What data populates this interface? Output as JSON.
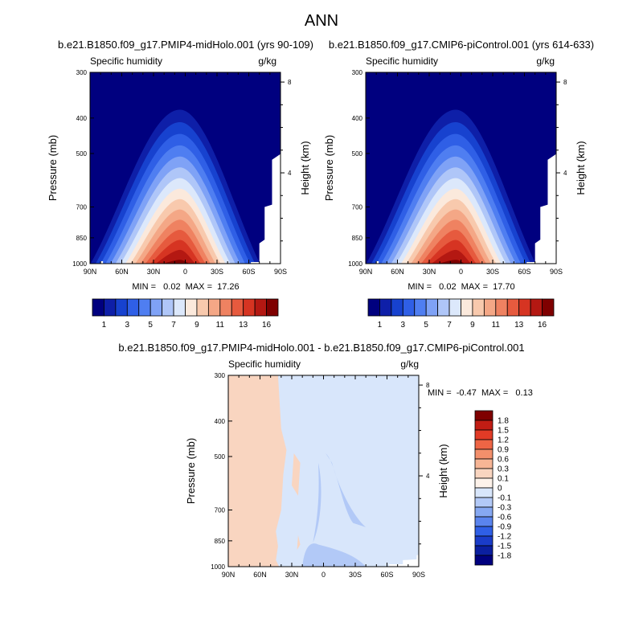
{
  "figure": {
    "title": "ANN",
    "panels": [
      {
        "heading": "b.e21.B1850.f09_g17.PMIP4-midHolo.001 (yrs 90-109)",
        "field_label": "Specific humidity",
        "units": "g/kg",
        "stats": "MIN =   0.02  MAX =  17.26"
      },
      {
        "heading": "b.e21.B1850.f09_g17.CMIP6-piControl.001 (yrs 614-633)",
        "field_label": "Specific humidity",
        "units": "g/kg",
        "stats": "MIN =   0.02  MAX =  17.70"
      },
      {
        "heading": "b.e21.B1850.f09_g17.PMIP4-midHolo.001 - b.e21.B1850.f09_g17.CMIP6-piControl.001",
        "field_label": "Specific humidity",
        "units": "g/kg",
        "stats": "MIN =  -0.47  MAX =   0.13"
      }
    ]
  },
  "chart_data": [
    {
      "type": "heatmap",
      "title": "b.e21.B1850.f09_g17.PMIP4-midHolo.001 (yrs 90-109)",
      "field": "Specific humidity",
      "units": "g/kg",
      "xlabel": "",
      "ylabel": "Pressure (mb)",
      "y2label": "Height (km)",
      "x_ticks": [
        "90N",
        "60N",
        "30N",
        "0",
        "30S",
        "60S",
        "90S"
      ],
      "y_ticks": [
        300,
        400,
        500,
        700,
        850,
        1000
      ],
      "y2_ticks": [
        8,
        4
      ],
      "ylim": [
        1000,
        300
      ],
      "y_scale": "log",
      "min": 0.02,
      "max": 17.26,
      "colorbar_labels": [
        "1",
        "3",
        "5",
        "7",
        "9",
        "11",
        "13",
        "16"
      ],
      "colorbar_colors": [
        "#00007f",
        "#0e1fa8",
        "#1742cf",
        "#2f5fe6",
        "#4f7ef1",
        "#7fa2f6",
        "#afc6f8",
        "#dce8fb",
        "#fbe9dc",
        "#f8c9ad",
        "#f4a786",
        "#ef8261",
        "#e65a3e",
        "#d63422",
        "#b41812",
        "#7f0000"
      ],
      "peak": {
        "lat": 5,
        "pressure": 1000
      }
    },
    {
      "type": "heatmap",
      "title": "b.e21.B1850.f09_g17.CMIP6-piControl.001 (yrs 614-633)",
      "field": "Specific humidity",
      "units": "g/kg",
      "xlabel": "",
      "ylabel": "Pressure (mb)",
      "y2label": "Height (km)",
      "x_ticks": [
        "90N",
        "60N",
        "30N",
        "0",
        "30S",
        "60S",
        "90S"
      ],
      "y_ticks": [
        300,
        400,
        500,
        700,
        850,
        1000
      ],
      "y2_ticks": [
        8,
        4
      ],
      "ylim": [
        1000,
        300
      ],
      "y_scale": "log",
      "min": 0.02,
      "max": 17.7,
      "colorbar_labels": [
        "1",
        "3",
        "5",
        "7",
        "9",
        "11",
        "13",
        "16"
      ],
      "colorbar_colors": [
        "#00007f",
        "#0e1fa8",
        "#1742cf",
        "#2f5fe6",
        "#4f7ef1",
        "#7fa2f6",
        "#afc6f8",
        "#dce8fb",
        "#fbe9dc",
        "#f8c9ad",
        "#f4a786",
        "#ef8261",
        "#e65a3e",
        "#d63422",
        "#b41812",
        "#7f0000"
      ],
      "peak": {
        "lat": 5,
        "pressure": 1000
      }
    },
    {
      "type": "heatmap",
      "title": "b.e21.B1850.f09_g17.PMIP4-midHolo.001 - b.e21.B1850.f09_g17.CMIP6-piControl.001",
      "field": "Specific humidity",
      "units": "g/kg",
      "xlabel": "",
      "ylabel": "Pressure (mb)",
      "y2label": "Height (km)",
      "x_ticks": [
        "90N",
        "60N",
        "30N",
        "0",
        "30S",
        "60S",
        "90S"
      ],
      "y_ticks": [
        300,
        400,
        500,
        700,
        850,
        1000
      ],
      "y2_ticks": [
        8,
        4
      ],
      "ylim": [
        1000,
        300
      ],
      "y_scale": "log",
      "min": -0.47,
      "max": 0.13,
      "colorbar_labels": [
        "1.8",
        "1.5",
        "1.2",
        "0.9",
        "0.6",
        "0.3",
        "0.1",
        "0",
        "-0.1",
        "-0.3",
        "-0.6",
        "-0.9",
        "-1.2",
        "-1.5",
        "-1.8"
      ],
      "colorbar_colors": [
        "#7f0000",
        "#c11d14",
        "#e13b26",
        "#ee6545",
        "#f38f6b",
        "#f7b595",
        "#f9d5c0",
        "#fdf2ea",
        "#d8e6fb",
        "#b2c9f7",
        "#86a8f2",
        "#5a84ee",
        "#2f5fe6",
        "#1a3cc9",
        "#0b1fa0",
        "#00007f"
      ],
      "regions": [
        {
          "sign": "positive",
          "lat_range": [
            "90N",
            "40N"
          ],
          "value": 0.05
        },
        {
          "sign": "negative",
          "lat_range": [
            "40N",
            "90S"
          ],
          "value": -0.05
        },
        {
          "sign": "negative",
          "lat_range": [
            "30N",
            "20S"
          ],
          "pressure_range": [
            850,
            1000
          ],
          "value": -0.3
        }
      ]
    }
  ]
}
